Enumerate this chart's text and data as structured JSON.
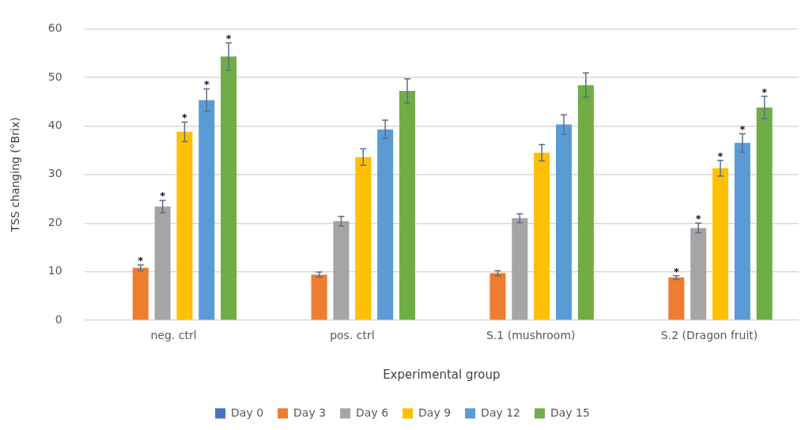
{
  "chart_data": {
    "type": "bar",
    "xlabel": "Experimental group",
    "ylabel": "TSS changing (°Brix)",
    "categories": [
      "neg. ctrl",
      "pos. ctrl",
      "S.1 (mushroom)",
      "S.2 (Dragon fruit)"
    ],
    "series": [
      {
        "name": "Day 0",
        "color": "#4472c4",
        "values": [
          0,
          0,
          0,
          0
        ]
      },
      {
        "name": "Day 3",
        "color": "#ed7d31",
        "values": [
          10.8,
          9.4,
          9.7,
          8.8
        ],
        "errors": [
          0.6,
          0.5,
          0.5,
          0.4
        ],
        "value_labels": [
          "*",
          null,
          null,
          "*"
        ]
      },
      {
        "name": "Day 6",
        "color": "#a5a5a5",
        "values": [
          23.4,
          20.4,
          21,
          19
        ],
        "errors": [
          1.3,
          1,
          0.9,
          1
        ],
        "value_labels": [
          "*",
          null,
          null,
          "*"
        ]
      },
      {
        "name": "Day 9",
        "color": "#ffc000",
        "values": [
          38.8,
          33.6,
          34.5,
          31.3
        ],
        "errors": [
          2,
          1.7,
          1.7,
          1.6
        ],
        "value_labels": [
          "*",
          null,
          null,
          "*"
        ]
      },
      {
        "name": "Day 12",
        "color": "#5b9bd5",
        "values": [
          45.3,
          39.3,
          40.3,
          36.5
        ],
        "errors": [
          2.3,
          1.9,
          2,
          1.9
        ],
        "value_labels": [
          "*",
          null,
          null,
          "*"
        ]
      },
      {
        "name": "Day 15",
        "color": "#70ad47",
        "values": [
          54.3,
          47.2,
          48.4,
          43.8
        ],
        "errors": [
          2.8,
          2.5,
          2.5,
          2.3
        ],
        "value_labels": [
          "*",
          null,
          null,
          "*"
        ]
      }
    ],
    "ylim": [
      0,
      60
    ],
    "yticks": [
      0,
      10,
      20,
      30,
      40,
      50,
      60
    ],
    "grid": "y",
    "legend": "bottom"
  }
}
